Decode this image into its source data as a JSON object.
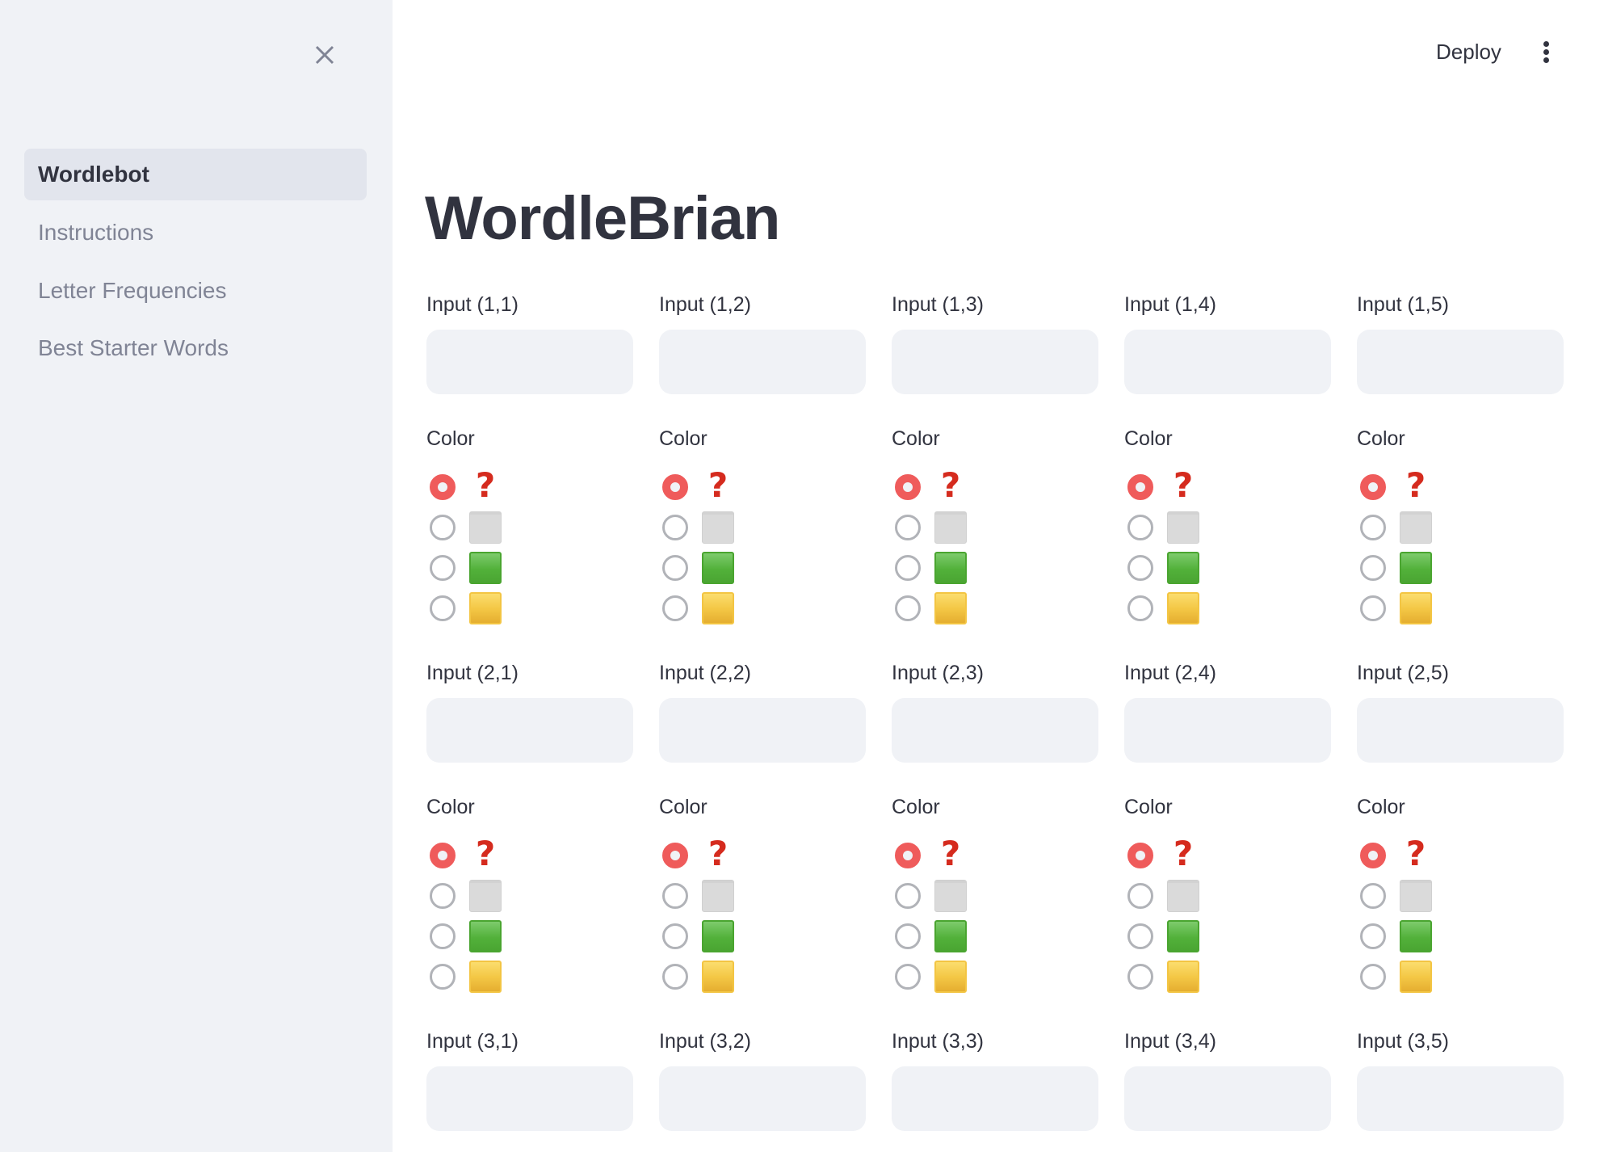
{
  "sidebar": {
    "close_icon": "close-x-icon",
    "items": [
      {
        "label": "Wordlebot",
        "active": true
      },
      {
        "label": "Instructions",
        "active": false
      },
      {
        "label": "Letter Frequencies",
        "active": false
      },
      {
        "label": "Best Starter Words",
        "active": false
      }
    ]
  },
  "header": {
    "deploy_label": "Deploy",
    "menu_icon": "kebab-menu-icon"
  },
  "main": {
    "title": "WordleBrian",
    "color_label": "Color",
    "color_options": [
      "question-mark",
      "gray-square",
      "green-square",
      "yellow-square"
    ],
    "question_glyph": "?",
    "rows": [
      {
        "cells": [
          {
            "label": "Input (1,1)",
            "value": "",
            "selected_color": 0
          },
          {
            "label": "Input (1,2)",
            "value": "",
            "selected_color": 0
          },
          {
            "label": "Input (1,3)",
            "value": "",
            "selected_color": 0
          },
          {
            "label": "Input (1,4)",
            "value": "",
            "selected_color": 0
          },
          {
            "label": "Input (1,5)",
            "value": "",
            "selected_color": 0
          }
        ]
      },
      {
        "cells": [
          {
            "label": "Input (2,1)",
            "value": "",
            "selected_color": 0
          },
          {
            "label": "Input (2,2)",
            "value": "",
            "selected_color": 0
          },
          {
            "label": "Input (2,3)",
            "value": "",
            "selected_color": 0
          },
          {
            "label": "Input (2,4)",
            "value": "",
            "selected_color": 0
          },
          {
            "label": "Input (2,5)",
            "value": "",
            "selected_color": 0
          }
        ]
      },
      {
        "cells": [
          {
            "label": "Input (3,1)",
            "value": ""
          },
          {
            "label": "Input (3,2)",
            "value": ""
          },
          {
            "label": "Input (3,3)",
            "value": ""
          },
          {
            "label": "Input (3,4)",
            "value": ""
          },
          {
            "label": "Input (3,5)",
            "value": ""
          }
        ]
      }
    ]
  },
  "colors": {
    "sidebar_bg": "#f0f2f6",
    "active_nav_bg": "#e2e5ed",
    "radio_selected": "#ef5b5b",
    "text": "#31333f",
    "muted_text": "#808495",
    "tile_gray": "#d9d9d9",
    "tile_green": "#52b13a",
    "tile_yellow": "#f4c846",
    "question_red": "#d52b1e"
  }
}
